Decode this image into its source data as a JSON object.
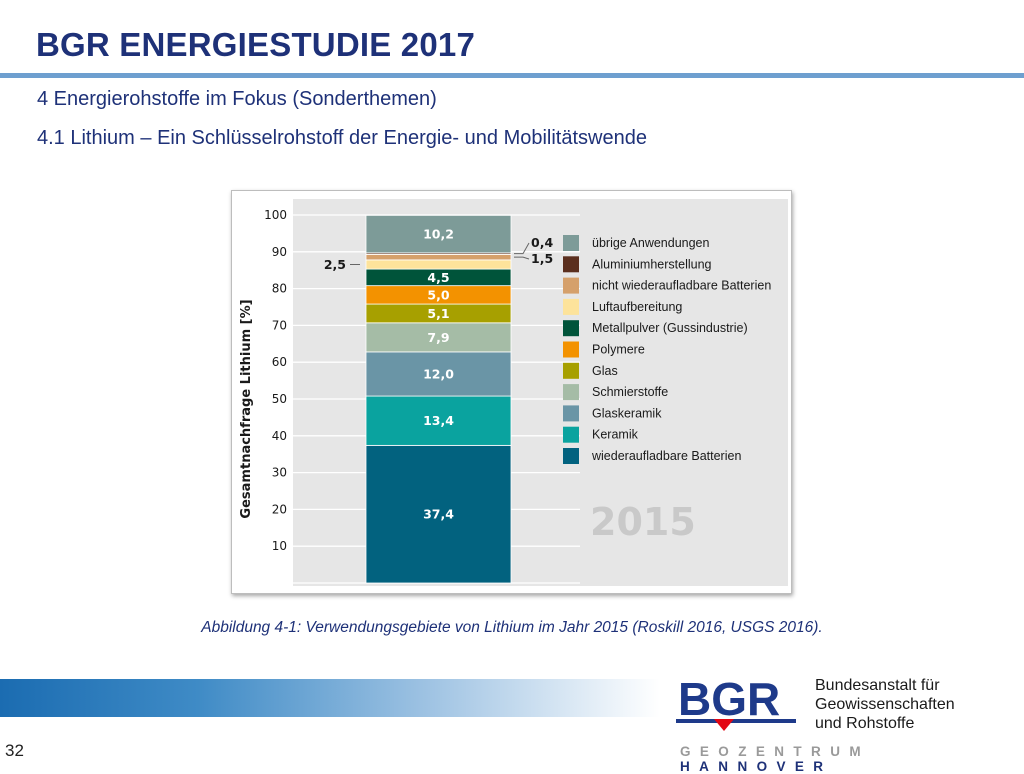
{
  "header": {
    "title": "BGR ENERGIESTUDIE 2017",
    "subtitle_1": "4 Energierohstoffe im Fokus (Sonderthemen)",
    "subtitle_2": "4.1 Lithium – Ein Schlüsselrohstoff der Energie- und Mobilitätswende"
  },
  "chart_data": {
    "type": "bar",
    "stacked": true,
    "ylabel": "Gesamtnachfrage Lithium [%]",
    "ylim": [
      0,
      100
    ],
    "yticks": [
      "10",
      "20",
      "30",
      "40",
      "50",
      "60",
      "70",
      "80",
      "90",
      "100"
    ],
    "year": "2015",
    "series": [
      {
        "name": "wiederaufladbare Batterien",
        "value": 37.4,
        "label": "37,4",
        "color": "#02627f",
        "label_pos": "inside"
      },
      {
        "name": "Keramik",
        "value": 13.4,
        "label": "13,4",
        "color": "#0aa39f",
        "label_pos": "inside"
      },
      {
        "name": "Glaskeramik",
        "value": 12.0,
        "label": "12,0",
        "color": "#6a95a6",
        "label_pos": "inside"
      },
      {
        "name": "Schmierstoffe",
        "value": 7.9,
        "label": "7,9",
        "color": "#a5bca6",
        "label_pos": "inside"
      },
      {
        "name": "Glas",
        "value": 5.1,
        "label": "5,1",
        "color": "#a7a000",
        "label_pos": "inside"
      },
      {
        "name": "Polymere",
        "value": 5.0,
        "label": "5,0",
        "color": "#f39200",
        "label_pos": "inside"
      },
      {
        "name": "Metallpulver (Gussindustrie)",
        "value": 4.5,
        "label": "4,5",
        "color": "#00543a",
        "label_pos": "inside"
      },
      {
        "name": "Luftaufbereitung",
        "value": 2.5,
        "label": "2,5",
        "color": "#fde39b",
        "label_pos": "left"
      },
      {
        "name": "nicht wiederaufladbare Batterien",
        "value": 1.5,
        "label": "1,5",
        "color": "#d5a06b",
        "label_pos": "right"
      },
      {
        "name": "Aluminiumherstellung",
        "value": 0.4,
        "label": "0,4",
        "color": "#5b2f1e",
        "label_pos": "right"
      },
      {
        "name": "übrige Anwendungen",
        "value": 10.2,
        "label": "10,2",
        "color": "#7d9b98",
        "label_pos": "inside"
      }
    ],
    "legend_order": [
      "übrige Anwendungen",
      "Aluminiumherstellung",
      "nicht wiederaufladbare Batterien",
      "Luftaufbereitung",
      "Metallpulver (Gussindustrie)",
      "Polymere",
      "Glas",
      "Schmierstoffe",
      "Glaskeramik",
      "Keramik",
      "wiederaufladbare Batterien"
    ],
    "legend_position": "right",
    "grid": true
  },
  "caption": "Abbildung 4-1: Verwendungsgebiete von Lithium im Jahr 2015 (Roskill 2016, USGS 2016).",
  "footer": {
    "logo_text": "BGR",
    "org_line_1": "Bundesanstalt für",
    "org_line_2": "Geowissenschaften",
    "org_line_3": "und Rohstoffe",
    "geozentrum": "GEOZENTRUM",
    "hannover": "HANNOVER",
    "page_number": "32"
  },
  "colors": {
    "title": "#1e3178",
    "rule": "#6e9fcf",
    "logo_blue": "#1e3a8a",
    "logo_red": "#e30613"
  }
}
